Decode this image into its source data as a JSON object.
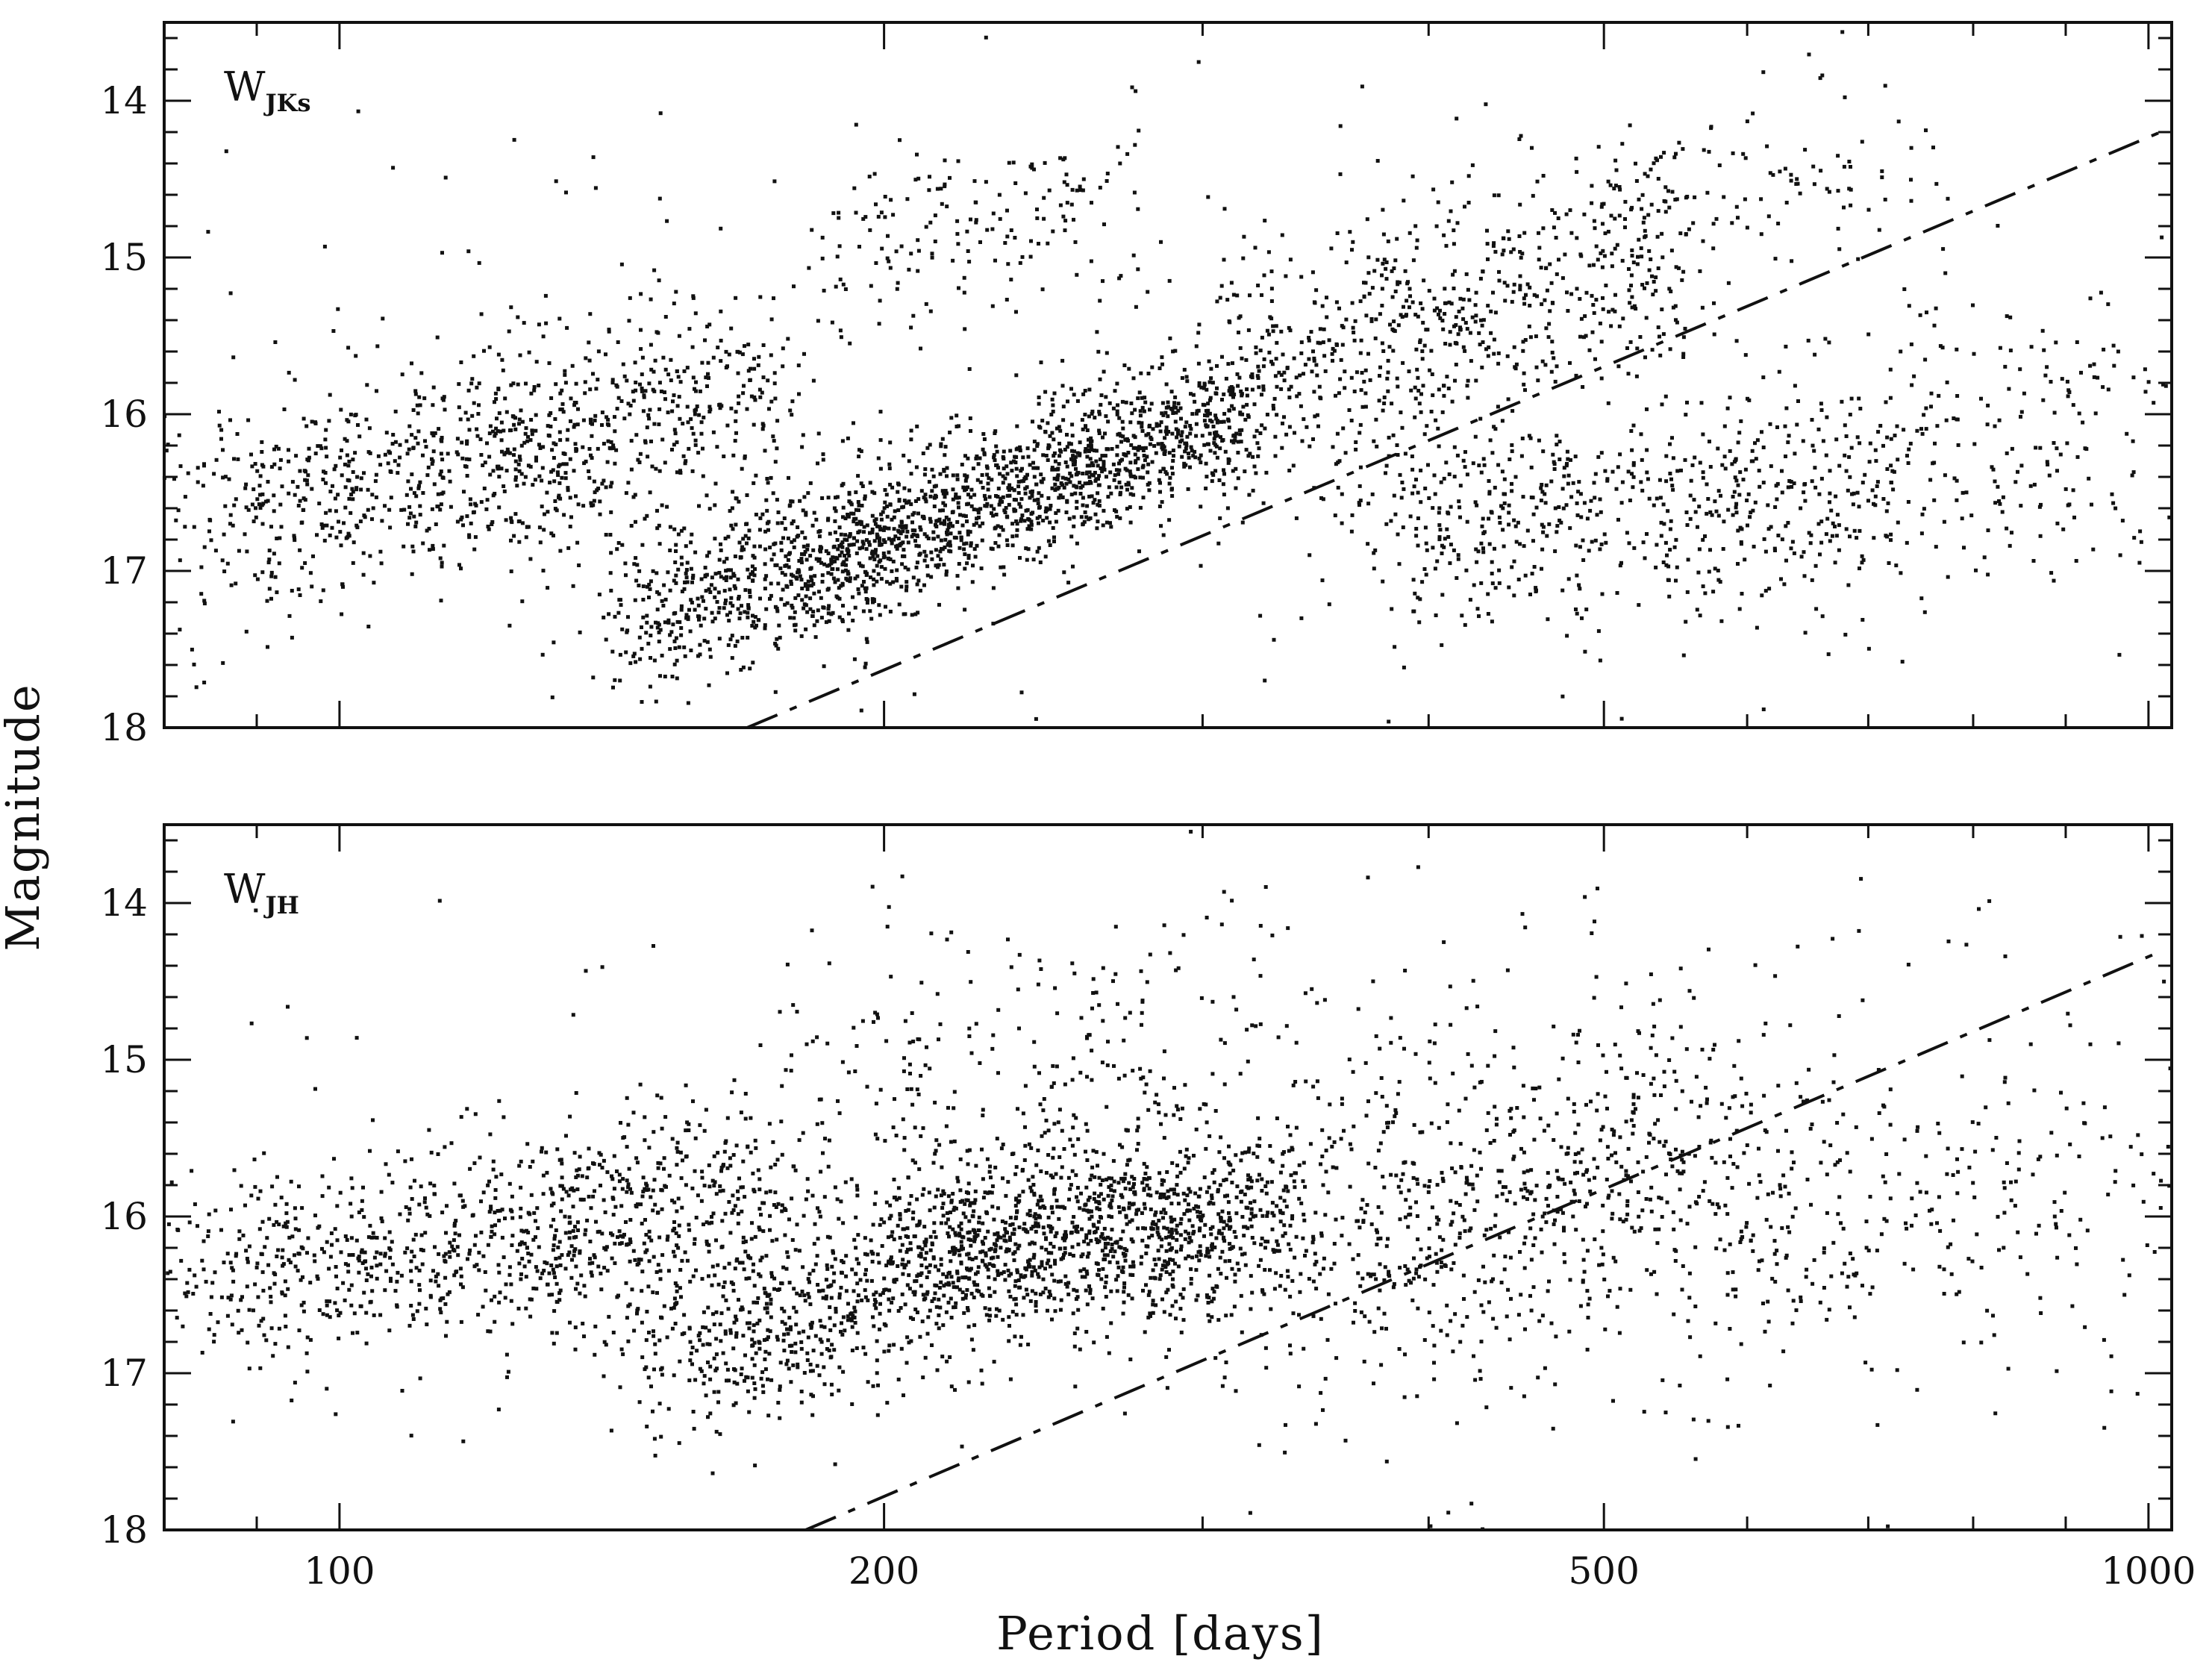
{
  "chart_data": [
    {
      "type": "scatter",
      "panel_label": "W",
      "panel_label_sub": "JKs",
      "xlabel": "Period [days]",
      "ylabel": "Magnitude",
      "xscale": "log",
      "xlim": [
        80,
        1030
      ],
      "ylim": [
        18,
        13.5
      ],
      "y_inverted": true,
      "x_ticks": [
        100,
        200,
        500,
        1000
      ],
      "x_tick_labels": [
        "",
        "",
        "",
        ""
      ],
      "y_ticks": [
        14,
        15,
        16,
        17,
        18
      ],
      "y_tick_labels": [
        "14",
        "15",
        "16",
        "17",
        "18"
      ],
      "fit_line": {
        "x": [
          168,
          1030
        ],
        "y": [
          18.0,
          14.17
        ]
      },
      "clusters": [
        {
          "x": [
            85,
            130
          ],
          "y": [
            16.7,
            16.2
          ],
          "sx": 0.09,
          "sy": 0.35,
          "n": 550
        },
        {
          "x": [
            120,
            175
          ],
          "y": [
            16.3,
            15.8
          ],
          "sx": 0.07,
          "sy": 0.35,
          "n": 450
        },
        {
          "x": [
            145,
            195
          ],
          "y": [
            17.3,
            16.9
          ],
          "sx": 0.06,
          "sy": 0.25,
          "n": 520
        },
        {
          "x": [
            185,
            310
          ],
          "y": [
            16.95,
            16.0
          ],
          "sx": 0.06,
          "sy": 0.22,
          "n": 1300
        },
        {
          "x": [
            300,
            560
          ],
          "y": [
            15.9,
            14.9
          ],
          "sx": 0.06,
          "sy": 0.38,
          "n": 700
        },
        {
          "x": [
            380,
            700
          ],
          "y": [
            16.7,
            16.5
          ],
          "sx": 0.09,
          "sy": 0.35,
          "n": 650
        },
        {
          "x": [
            190,
            270
          ],
          "y": [
            15.0,
            14.6
          ],
          "sx": 0.05,
          "sy": 0.25,
          "n": 160
        },
        {
          "x": [
            500,
            750
          ],
          "y": [
            14.7,
            14.4
          ],
          "sx": 0.05,
          "sy": 0.25,
          "n": 90
        },
        {
          "x": [
            80,
            1030
          ],
          "y": [
            16.2,
            15.6
          ],
          "sx": 0.35,
          "sy": 1.0,
          "n": 300
        },
        {
          "x": [
            700,
            1000
          ],
          "y": [
            16.3,
            16.2
          ],
          "sx": 0.06,
          "sy": 0.45,
          "n": 180
        }
      ]
    },
    {
      "type": "scatter",
      "panel_label": "W",
      "panel_label_sub": "JH",
      "xlabel": "Period [days]",
      "ylabel": "Magnitude",
      "xscale": "log",
      "xlim": [
        80,
        1030
      ],
      "ylim": [
        18,
        13.5
      ],
      "y_inverted": true,
      "x_ticks": [
        100,
        200,
        500,
        1000
      ],
      "x_tick_labels": [
        "100",
        "200",
        "500",
        "1000"
      ],
      "y_ticks": [
        14,
        15,
        16,
        17,
        18
      ],
      "y_tick_labels": [
        "14",
        "15",
        "16",
        "17",
        "18"
      ],
      "fit_line": {
        "x": [
          181,
          1020
        ],
        "y": [
          18.0,
          14.3
        ]
      },
      "clusters": [
        {
          "x": [
            85,
            140
          ],
          "y": [
            16.4,
            16.1
          ],
          "sx": 0.09,
          "sy": 0.3,
          "n": 600
        },
        {
          "x": [
            130,
            180
          ],
          "y": [
            16.1,
            15.9
          ],
          "sx": 0.06,
          "sy": 0.35,
          "n": 420
        },
        {
          "x": [
            150,
            200
          ],
          "y": [
            16.9,
            16.6
          ],
          "sx": 0.06,
          "sy": 0.3,
          "n": 380
        },
        {
          "x": [
            200,
            320
          ],
          "y": [
            16.3,
            16.0
          ],
          "sx": 0.06,
          "sy": 0.3,
          "n": 1300
        },
        {
          "x": [
            320,
            600
          ],
          "y": [
            16.1,
            15.6
          ],
          "sx": 0.09,
          "sy": 0.55,
          "n": 800
        },
        {
          "x": [
            180,
            300
          ],
          "y": [
            15.2,
            14.8
          ],
          "sx": 0.08,
          "sy": 0.45,
          "n": 200
        },
        {
          "x": [
            80,
            1030
          ],
          "y": [
            16.0,
            15.5
          ],
          "sx": 0.35,
          "sy": 1.1,
          "n": 400
        },
        {
          "x": [
            600,
            1000
          ],
          "y": [
            16.0,
            15.8
          ],
          "sx": 0.07,
          "sy": 0.45,
          "n": 200
        }
      ]
    }
  ]
}
